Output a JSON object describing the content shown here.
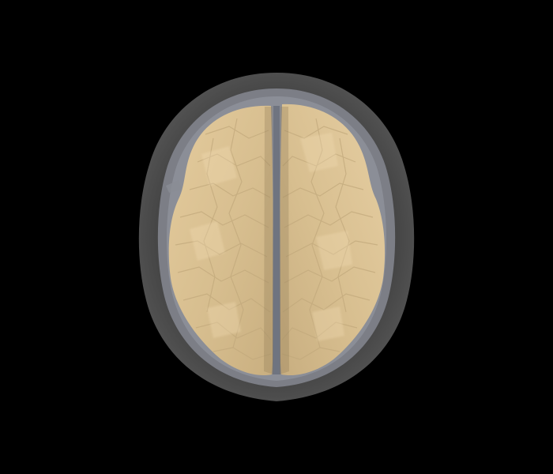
{
  "scene": {
    "subject": "brain-3d-surface-render",
    "view": "top-down",
    "colors": {
      "background": "#000000",
      "scalp": "#4a4a4a",
      "scalp_edge": "#5a5a5a",
      "skull": "#7c7e86",
      "skull_inner": "#8b8e97",
      "csf_gap": "#6f7480",
      "cortex": "#d7be8f",
      "cortex_highlight": "#e6cea2",
      "cortex_shadow": "#b89f74",
      "sulcus_line": "#c2a97c"
    }
  }
}
